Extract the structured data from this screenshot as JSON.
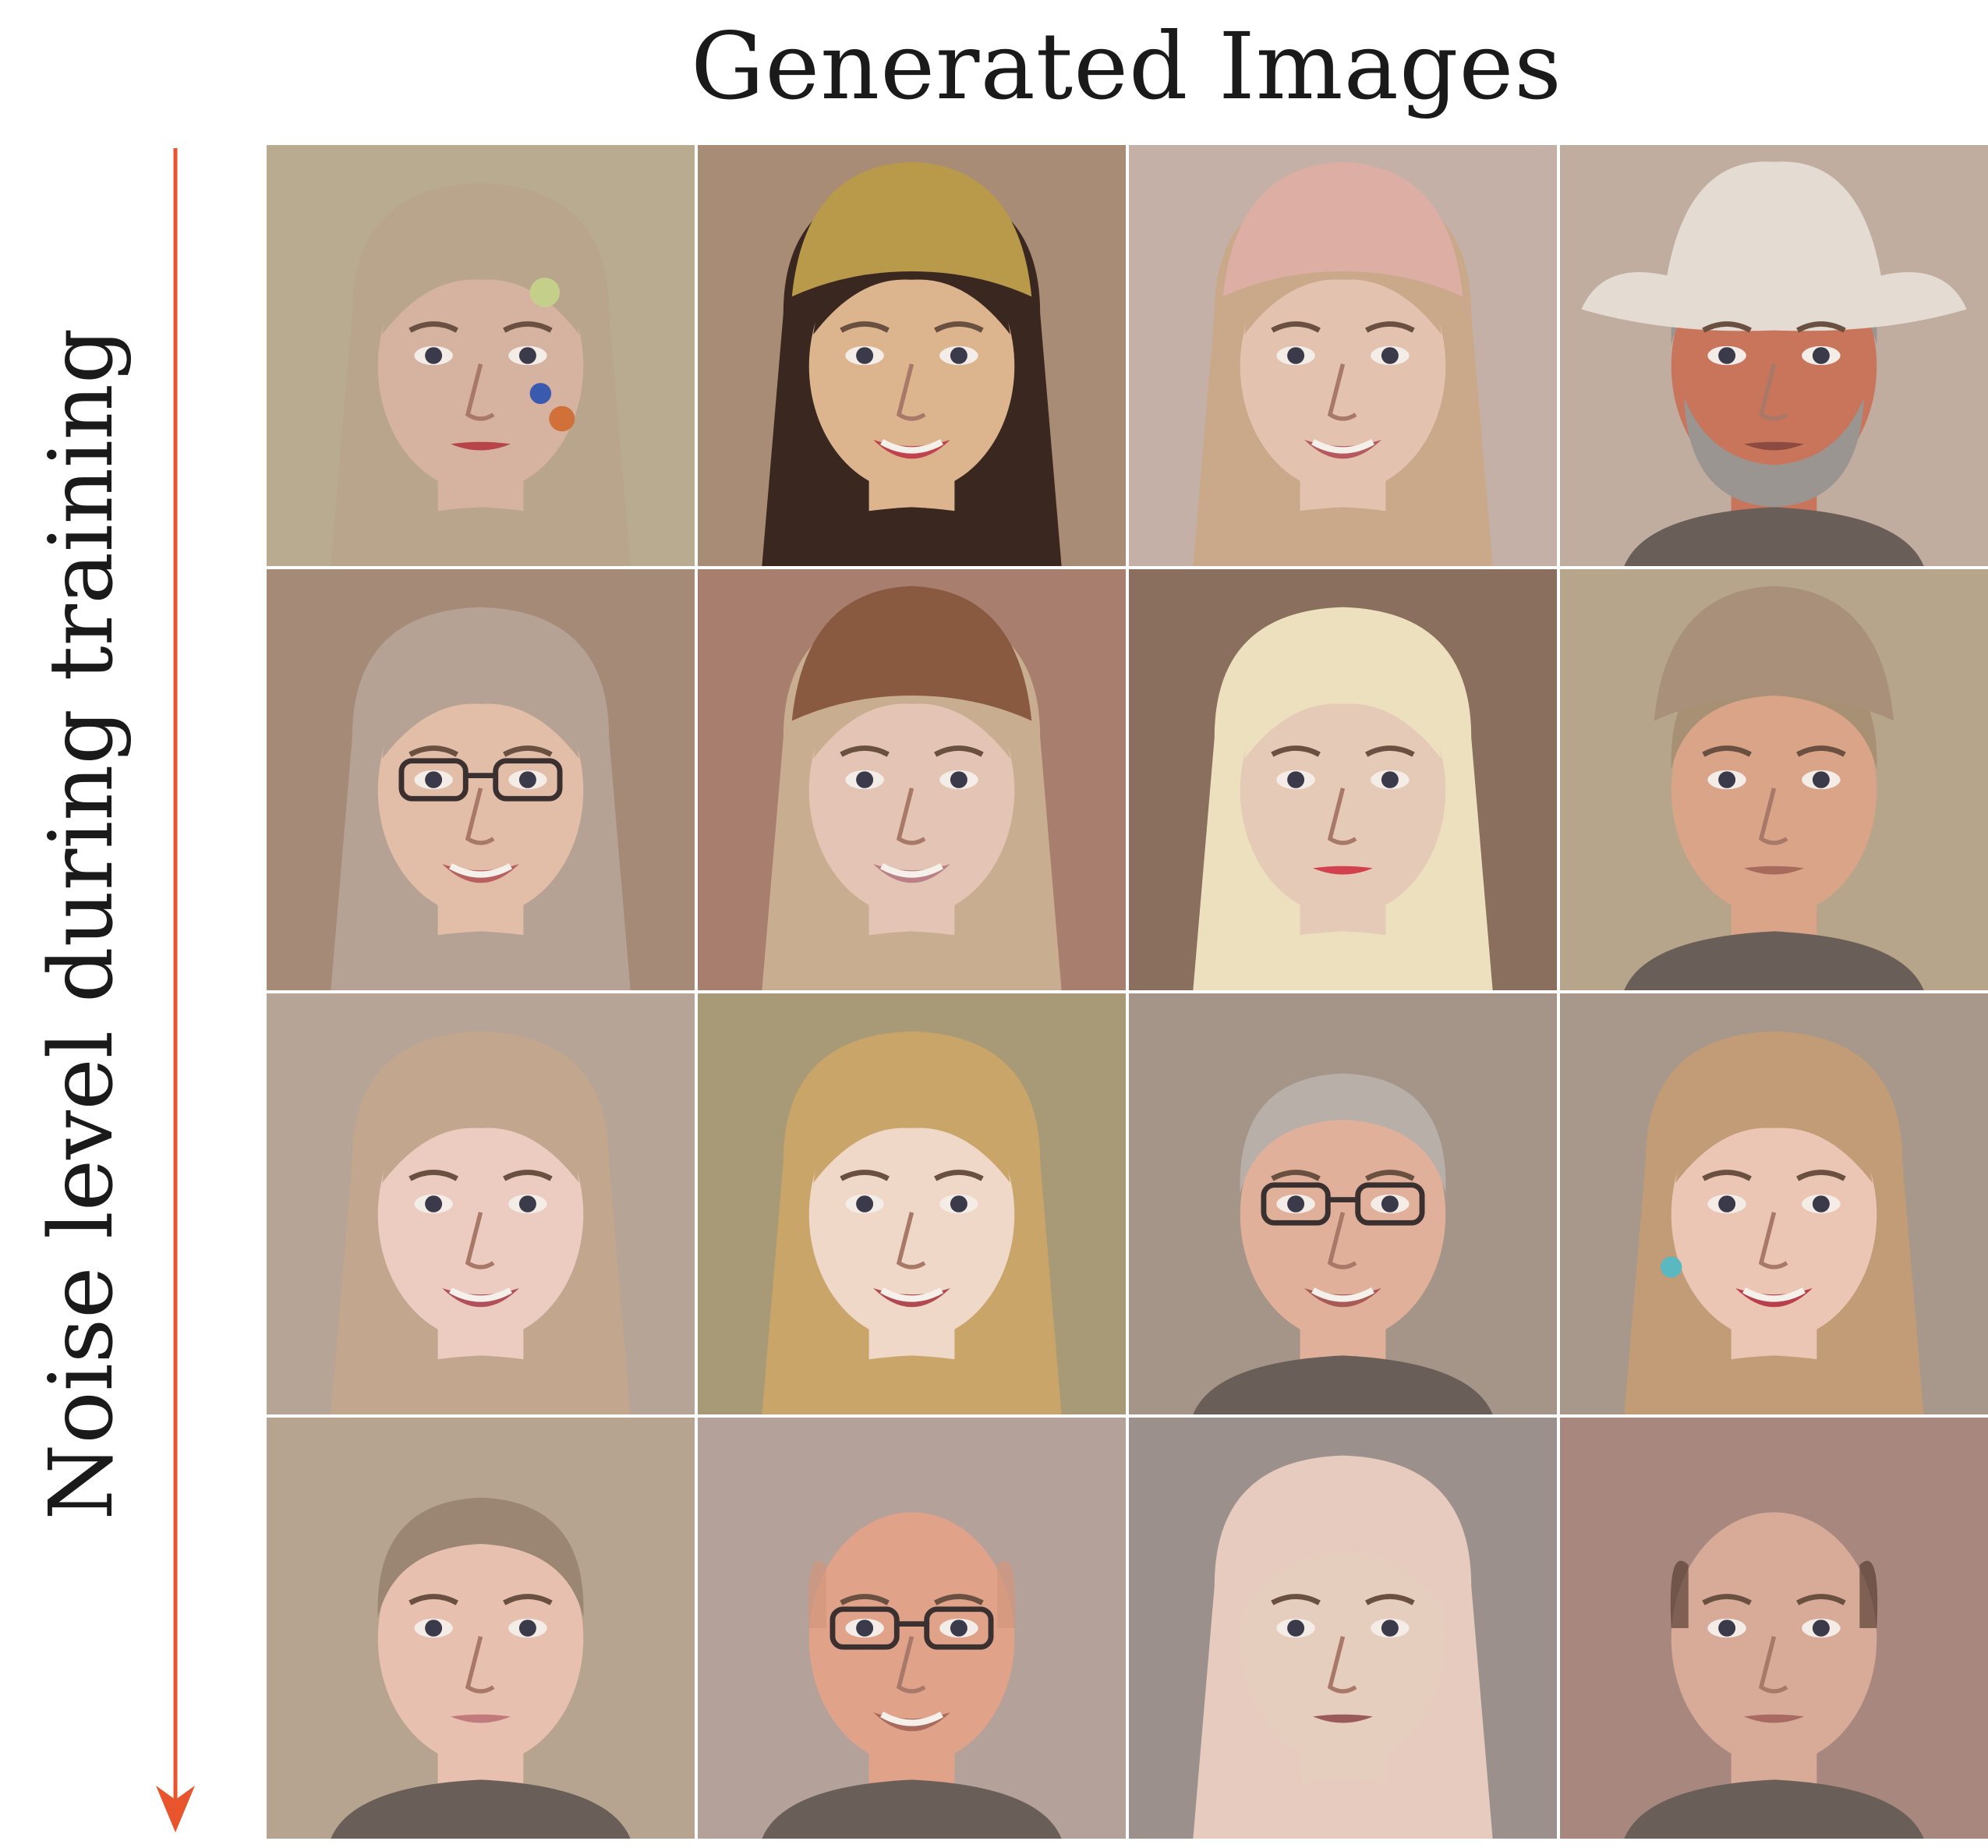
{
  "figure": {
    "title": "Generated Images",
    "axis_label": "Noise level during training",
    "arrow_color": "#e8552c"
  },
  "grid": {
    "rows": [
      [
        {
          "icon": "face-child-face-paint-icon",
          "bg": "#b9ab8f",
          "skin": "#d6b3a0",
          "hair": "#b8a58c",
          "lips": "#b8444a"
        },
        {
          "icon": "face-woman-headdress-icon",
          "bg": "#a88c76",
          "skin": "#dcb48e",
          "hair": "#3a2820",
          "lips": "#c0424c"
        },
        {
          "icon": "face-woman-pink-hat-icon",
          "bg": "#c4b0a6",
          "skin": "#e4c2b0",
          "hair": "#c9a98a",
          "lips": "#b65a60"
        },
        {
          "icon": "face-man-cowboy-hat-icon",
          "bg": "#c0ada0",
          "skin": "#c9755c",
          "hair": "#9a9590",
          "lips": "#8c4a40"
        }
      ],
      [
        {
          "icon": "face-woman-glasses-icon",
          "bg": "#a58a78",
          "skin": "#e2bda8",
          "hair": "#b5a294",
          "lips": "#b86060"
        },
        {
          "icon": "face-woman-knit-hat-icon",
          "bg": "#a87e6e",
          "skin": "#e4c4b4",
          "hair": "#c9ad90",
          "lips": "#bb7f86"
        },
        {
          "icon": "face-person-blonde-wig-icon",
          "bg": "#8a6e5e",
          "skin": "#e6cab8",
          "hair": "#ede0bf",
          "lips": "#d2424e"
        },
        {
          "icon": "face-man-fur-hat-icon",
          "bg": "#b6a58a",
          "skin": "#d9a488",
          "hair": "#a89074",
          "lips": "#a86a5a"
        }
      ],
      [
        {
          "icon": "face-girl-smiling-icon",
          "bg": "#b6a496",
          "skin": "#ecccc0",
          "hair": "#c2a68e",
          "lips": "#b0505a"
        },
        {
          "icon": "face-woman-blonde-bangs-icon",
          "bg": "#a89a76",
          "skin": "#f0d8c8",
          "hair": "#c9a56a",
          "lips": "#b04a50"
        },
        {
          "icon": "face-man-glasses-icon",
          "bg": "#a59488",
          "skin": "#e0b09a",
          "hair": "#b8b0a8",
          "lips": "#a85a54"
        },
        {
          "icon": "face-woman-earring-icon",
          "bg": "#a8988c",
          "skin": "#ecc6b4",
          "hair": "#c29c76",
          "lips": "#b8404c"
        }
      ],
      [
        {
          "icon": "face-man-short-hair-icon",
          "bg": "#b7a490",
          "skin": "#e8c0b0",
          "hair": "#9a8672",
          "lips": "#c27a7c"
        },
        {
          "icon": "face-man-bald-glasses-icon",
          "bg": "#b4a29a",
          "skin": "#e0a38a",
          "hair": "#d2957c",
          "lips": "#a86a5c"
        },
        {
          "icon": "face-woman-light-hair-icon",
          "bg": "#9c908c",
          "skin": "#e6cebf",
          "hair": "#e8cbbf",
          "lips": "#9a5a5a"
        },
        {
          "icon": "face-man-shaved-head-icon",
          "bg": "#a8887e",
          "skin": "#d8aa98",
          "hair": "#5a4036",
          "lips": "#a86a62"
        }
      ]
    ]
  }
}
